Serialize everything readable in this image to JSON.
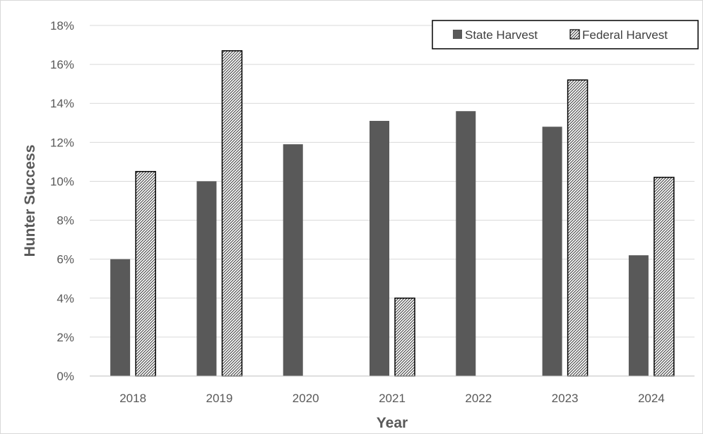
{
  "chart_data": {
    "type": "bar",
    "xlabel": "Year",
    "ylabel": "Hunter Success",
    "categories": [
      "2018",
      "2019",
      "2020",
      "2021",
      "2022",
      "2023",
      "2024"
    ],
    "ylim": [
      0,
      18
    ],
    "yticks": [
      "0%",
      "2%",
      "4%",
      "6%",
      "8%",
      "10%",
      "12%",
      "14%",
      "16%",
      "18%"
    ],
    "grid": true,
    "legend_position": "top-right",
    "series": [
      {
        "name": "State Harvest",
        "values": [
          6.0,
          10.0,
          11.9,
          13.1,
          13.6,
          12.8,
          6.2
        ],
        "color": "#595959",
        "pattern": "solid"
      },
      {
        "name": "Federal Harvest",
        "values": [
          10.5,
          16.7,
          null,
          4.0,
          null,
          15.2,
          10.2
        ],
        "color": "#000000",
        "pattern": "diagonal-hatch"
      }
    ]
  }
}
